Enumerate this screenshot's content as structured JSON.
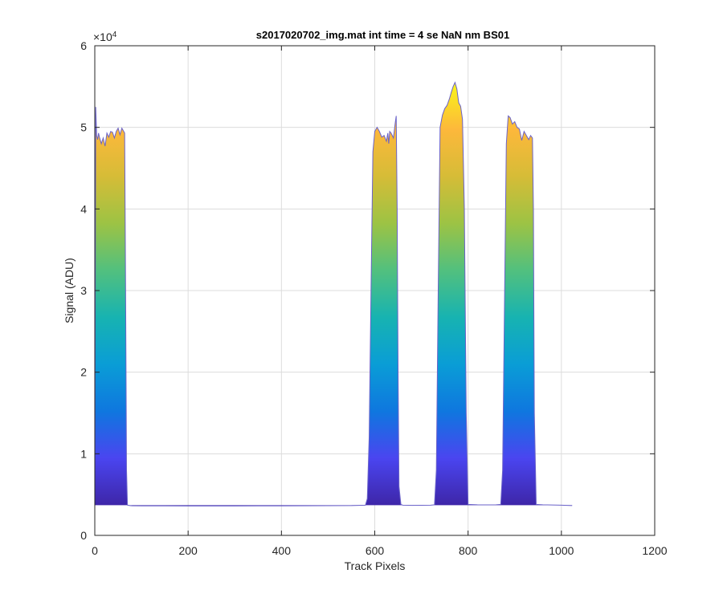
{
  "chart_data": {
    "type": "area",
    "title": "s2017020702_img.mat int time = 4 se  NaN nm BS01",
    "xlabel": "Track Pixels",
    "ylabel": "Signal (ADU)",
    "xlim": [
      0,
      1200
    ],
    "ylim": [
      0,
      60000
    ],
    "x_ticks": [
      0,
      200,
      400,
      600,
      800,
      1000,
      1200
    ],
    "x_tick_labels": [
      "0",
      "200",
      "400",
      "600",
      "800",
      "1000",
      "1200"
    ],
    "y_ticks": [
      0,
      10000,
      20000,
      30000,
      40000,
      50000,
      60000
    ],
    "y_tick_labels": [
      "0",
      "1",
      "2",
      "3",
      "4",
      "5",
      "6"
    ],
    "y_exponent_label": "×10",
    "y_exponent_power": "4",
    "grid": true,
    "baseline": 3700,
    "colormap": [
      "#3e26a8",
      "#4a45f0",
      "#0f77df",
      "#0a9dd6",
      "#17b3b1",
      "#52c07e",
      "#9dc344",
      "#d6bc37",
      "#fdb83b",
      "#f9f617"
    ],
    "line_color": "#6a62c9",
    "series": [
      {
        "x": [
          0,
          2,
          4,
          6,
          8,
          10,
          14,
          18,
          22,
          26,
          30,
          34,
          38,
          42,
          46,
          50,
          54,
          58,
          62,
          64,
          66,
          68,
          70,
          75,
          80,
          100,
          150,
          200,
          250,
          300,
          350,
          400,
          450,
          500,
          550,
          580,
          584,
          588,
          592,
          596,
          600,
          605,
          610,
          615,
          620,
          625,
          628,
          630,
          632,
          635,
          640,
          644,
          646,
          648,
          650,
          652,
          656,
          660,
          680,
          700,
          720,
          728,
          732,
          736,
          740,
          745,
          750,
          755,
          760,
          764,
          768,
          772,
          776,
          780,
          784,
          788,
          792,
          796,
          800,
          820,
          840,
          860,
          870,
          874,
          878,
          882,
          886,
          890,
          895,
          900,
          905,
          910,
          915,
          920,
          925,
          930,
          934,
          938,
          940,
          942,
          946,
          960,
          980,
          1000,
          1023
        ],
        "y": [
          3700,
          52500,
          49000,
          48500,
          49300,
          48800,
          48000,
          48700,
          47700,
          49300,
          48800,
          49500,
          49400,
          48700,
          49500,
          49900,
          49100,
          49900,
          49500,
          49300,
          30000,
          8000,
          3700,
          3650,
          3630,
          3620,
          3610,
          3600,
          3600,
          3600,
          3610,
          3620,
          3630,
          3640,
          3650,
          3700,
          4500,
          12000,
          30000,
          47000,
          49500,
          50000,
          49500,
          48800,
          49000,
          48300,
          49300,
          48000,
          49500,
          49300,
          48700,
          50600,
          51400,
          40000,
          20000,
          6000,
          3800,
          3700,
          3680,
          3690,
          3700,
          3750,
          8000,
          30000,
          50000,
          51500,
          52300,
          52700,
          53500,
          54300,
          55000,
          55500,
          54700,
          53000,
          52600,
          51000,
          40000,
          15000,
          3800,
          3750,
          3740,
          3750,
          3800,
          8000,
          28000,
          48000,
          51400,
          51200,
          50400,
          50700,
          50000,
          49800,
          48400,
          49500,
          49000,
          48500,
          49000,
          48700,
          40000,
          15000,
          3800,
          3750,
          3720,
          3700,
          3650
        ]
      }
    ]
  }
}
